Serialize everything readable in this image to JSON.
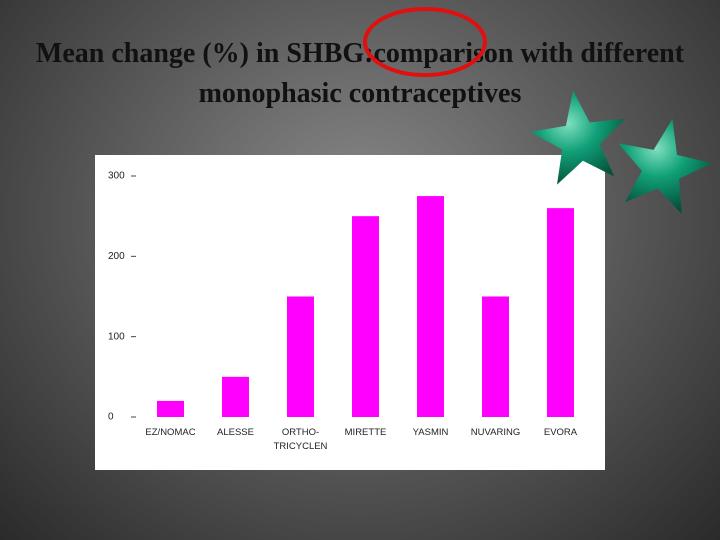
{
  "chart_data": {
    "type": "bar",
    "title": "Mean change (%) in SHBG:comparison with different monophasic contraceptives",
    "categories": [
      "EZ/NOMAC",
      "ALESSE",
      "ORTHO-\nTRICYCLEN",
      "MIRETTE",
      "YASMIN",
      "NUVARING",
      "EVORA"
    ],
    "values": [
      20,
      50,
      150,
      250,
      275,
      150,
      260
    ],
    "color": "#ff00ff",
    "ylim": [
      0,
      300
    ],
    "yticks": [
      0,
      100,
      200,
      300
    ],
    "grid": false
  }
}
